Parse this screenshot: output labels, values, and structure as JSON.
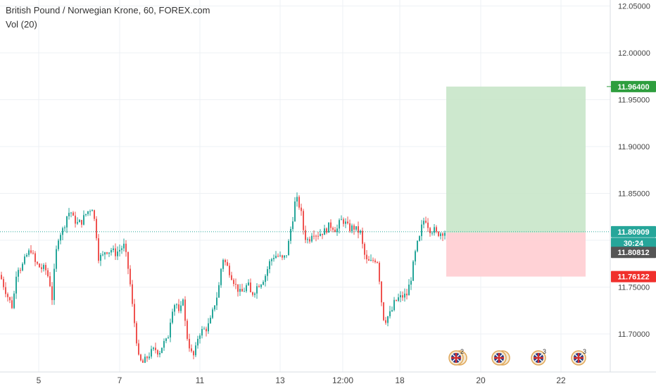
{
  "legend": {
    "title": "British Pound / Norwegian Krone, 60, FOREX.com",
    "vol": "Vol (20)"
  },
  "price_labels": {
    "target": "11.96400",
    "last": "11.80909",
    "countdown": "30:24",
    "entry": "11.80812",
    "stop": "11.76122"
  },
  "colors": {
    "up": "#26a69a",
    "down": "#ef5350",
    "target_zone": "#c8e6c9",
    "stop_zone": "#ffcdd2",
    "target_label": "#2e9e3e",
    "last_label": "#26a69a",
    "entry_label": "#555555",
    "stop_label": "#f0302c",
    "grid": "#eef1f4",
    "axis_text": "#444444"
  },
  "events": [
    {
      "icon": "uk-flag-icon",
      "count": "2"
    },
    {
      "icon": "uk-flag-icon",
      "count": ""
    },
    {
      "icon": "uk-flag-icon",
      "count": "3"
    },
    {
      "icon": "uk-flag-icon",
      "count": "3"
    }
  ],
  "chart_data": {
    "type": "candlestick",
    "title": "British Pound / Norwegian Krone, 60, FOREX.com",
    "y_ticks": [
      11.7,
      11.75,
      11.8,
      11.85,
      11.9,
      11.95,
      12.0,
      12.05
    ],
    "y_tick_labels": [
      "11.70000",
      "11.75000",
      "11.80000",
      "11.85000",
      "11.90000",
      "11.95000",
      "12.00000",
      "12.05000"
    ],
    "ylim": [
      11.665,
      12.062
    ],
    "x_tick_labels": [
      "5",
      "7",
      "11",
      "13",
      "12:00",
      "18",
      "20",
      "22"
    ],
    "grid": true,
    "last_price": 11.80909,
    "position": {
      "type": "long",
      "entry": 11.80812,
      "target": 11.964,
      "stop": 11.76122
    },
    "price_path": [
      [
        0,
        11.763
      ],
      [
        5,
        11.752
      ],
      [
        12,
        11.738
      ],
      [
        18,
        11.728
      ],
      [
        24,
        11.772
      ],
      [
        30,
        11.77
      ],
      [
        38,
        11.784
      ],
      [
        44,
        11.79
      ],
      [
        50,
        11.776
      ],
      [
        58,
        11.77
      ],
      [
        64,
        11.77
      ],
      [
        70,
        11.758
      ],
      [
        74,
        11.738
      ],
      [
        78,
        11.775
      ],
      [
        82,
        11.802
      ],
      [
        86,
        11.808
      ],
      [
        90,
        11.812
      ],
      [
        95,
        11.826
      ],
      [
        100,
        11.832
      ],
      [
        104,
        11.823
      ],
      [
        110,
        11.818
      ],
      [
        116,
        11.82
      ],
      [
        121,
        11.827
      ],
      [
        126,
        11.832
      ],
      [
        131,
        11.835
      ],
      [
        136,
        11.813
      ],
      [
        140,
        11.782
      ],
      [
        146,
        11.783
      ],
      [
        150,
        11.79
      ],
      [
        154,
        11.788
      ],
      [
        158,
        11.79
      ],
      [
        164,
        11.786
      ],
      [
        170,
        11.79
      ],
      [
        176,
        11.794
      ],
      [
        180,
        11.78
      ],
      [
        184,
        11.76
      ],
      [
        188,
        11.73
      ],
      [
        193,
        11.7
      ],
      [
        197,
        11.674
      ],
      [
        202,
        11.668
      ],
      [
        208,
        11.674
      ],
      [
        214,
        11.68
      ],
      [
        220,
        11.684
      ],
      [
        226,
        11.68
      ],
      [
        232,
        11.69
      ],
      [
        238,
        11.693
      ],
      [
        244,
        11.726
      ],
      [
        250,
        11.735
      ],
      [
        255,
        11.718
      ],
      [
        260,
        11.74
      ],
      [
        264,
        11.703
      ],
      [
        268,
        11.69
      ],
      [
        274,
        11.674
      ],
      [
        278,
        11.684
      ],
      [
        282,
        11.7
      ],
      [
        288,
        11.704
      ],
      [
        294,
        11.706
      ],
      [
        300,
        11.716
      ],
      [
        304,
        11.73
      ],
      [
        310,
        11.745
      ],
      [
        316,
        11.782
      ],
      [
        320,
        11.776
      ],
      [
        324,
        11.77
      ],
      [
        330,
        11.76
      ],
      [
        336,
        11.75
      ],
      [
        342,
        11.743
      ],
      [
        348,
        11.748
      ],
      [
        352,
        11.754
      ],
      [
        356,
        11.743
      ],
      [
        360,
        11.744
      ],
      [
        366,
        11.752
      ],
      [
        372,
        11.756
      ],
      [
        378,
        11.764
      ],
      [
        382,
        11.775
      ],
      [
        386,
        11.78
      ],
      [
        390,
        11.784
      ],
      [
        396,
        11.783
      ],
      [
        402,
        11.779
      ],
      [
        408,
        11.787
      ],
      [
        412,
        11.808
      ],
      [
        416,
        11.824
      ],
      [
        420,
        11.845
      ],
      [
        424,
        11.84
      ],
      [
        428,
        11.828
      ],
      [
        432,
        11.806
      ],
      [
        436,
        11.8
      ],
      [
        440,
        11.802
      ],
      [
        444,
        11.81
      ],
      [
        450,
        11.806
      ],
      [
        456,
        11.808
      ],
      [
        462,
        11.81
      ],
      [
        468,
        11.816
      ],
      [
        474,
        11.814
      ],
      [
        478,
        11.81
      ],
      [
        482,
        11.818
      ],
      [
        486,
        11.822
      ],
      [
        490,
        11.819
      ],
      [
        496,
        11.812
      ],
      [
        502,
        11.814
      ],
      [
        508,
        11.81
      ],
      [
        512,
        11.808
      ],
      [
        516,
        11.79
      ],
      [
        520,
        11.778
      ],
      [
        526,
        11.776
      ],
      [
        532,
        11.78
      ],
      [
        536,
        11.778
      ],
      [
        540,
        11.752
      ],
      [
        544,
        11.718
      ],
      [
        548,
        11.715
      ],
      [
        552,
        11.72
      ],
      [
        556,
        11.723
      ],
      [
        560,
        11.733
      ],
      [
        566,
        11.738
      ],
      [
        572,
        11.74
      ],
      [
        578,
        11.742
      ],
      [
        584,
        11.76
      ],
      [
        588,
        11.778
      ],
      [
        592,
        11.794
      ],
      [
        596,
        11.802
      ],
      [
        600,
        11.818
      ],
      [
        604,
        11.824
      ],
      [
        608,
        11.816
      ],
      [
        612,
        11.81
      ],
      [
        616,
        11.812
      ],
      [
        620,
        11.807
      ],
      [
        626,
        11.808
      ],
      [
        630,
        11.809
      ]
    ]
  }
}
